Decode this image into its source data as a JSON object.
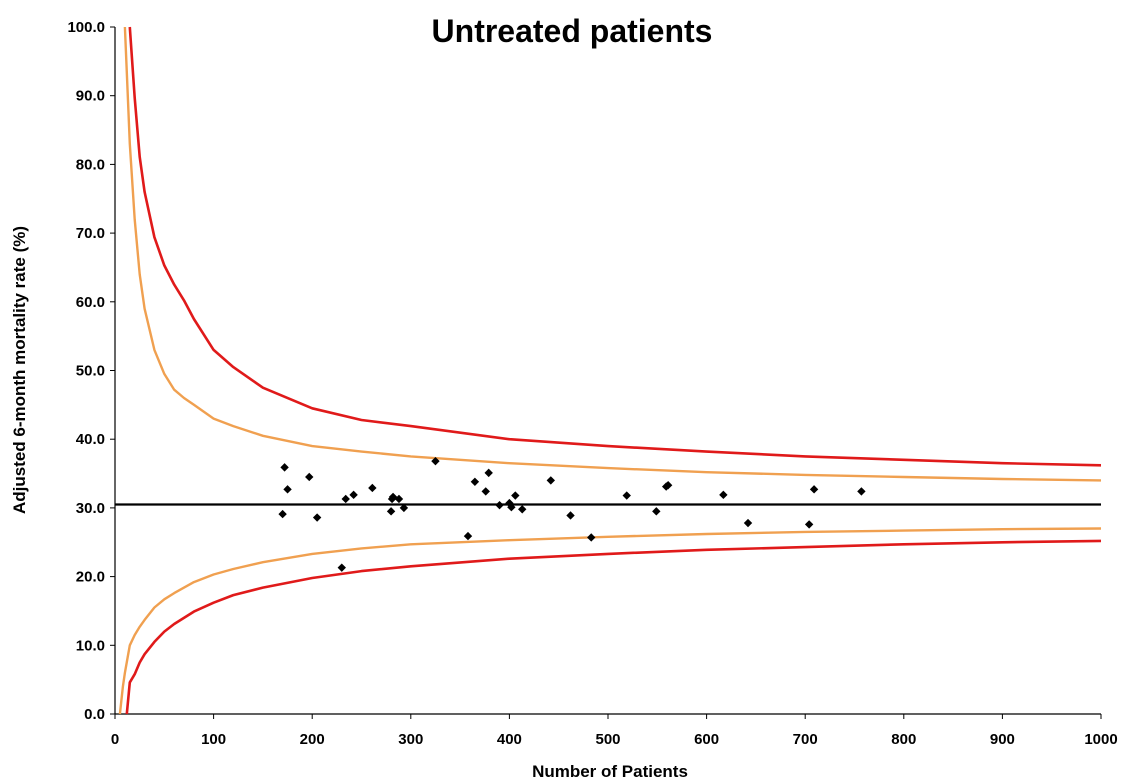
{
  "chart_data": {
    "type": "scatter",
    "title": "Untreated patients",
    "xlabel": "Number of Patients",
    "ylabel": "Adjusted 6-month mortality rate (%)",
    "xlim": [
      0,
      1000
    ],
    "ylim": [
      0,
      100
    ],
    "x_ticks": [
      "0",
      "100",
      "200",
      "300",
      "400",
      "500",
      "600",
      "700",
      "800",
      "900",
      "1000"
    ],
    "y_ticks": [
      "0.0",
      "10.0",
      "20.0",
      "30.0",
      "40.0",
      "50.0",
      "60.0",
      "70.0",
      "80.0",
      "90.0",
      "100.0"
    ],
    "grid": false,
    "legend": "none",
    "mean_line": {
      "y": 30.5,
      "color": "#000000"
    },
    "colors": {
      "inner_limits": "#f0a050",
      "outer_limits": "#e01a1a",
      "points": "#000000"
    },
    "limit_curves": [
      {
        "role": "outer-upper",
        "color": "#e01a1a",
        "x": [
          15,
          20,
          25,
          30,
          40,
          50,
          60,
          70,
          80,
          100,
          120,
          150,
          200,
          250,
          300,
          400,
          500,
          600,
          700,
          800,
          900,
          1000
        ],
        "y": [
          100.0,
          89.7,
          81.1,
          76.0,
          69.4,
          65.3,
          62.5,
          60.2,
          57.5,
          53.0,
          50.5,
          47.5,
          44.5,
          42.8,
          41.9,
          40.0,
          39.0,
          38.2,
          37.5,
          37.0,
          36.5,
          36.2
        ]
      },
      {
        "role": "inner-upper",
        "color": "#f0a050",
        "x": [
          10,
          15,
          20,
          25,
          30,
          40,
          50,
          60,
          70,
          80,
          100,
          120,
          150,
          200,
          250,
          300,
          400,
          500,
          600,
          700,
          800,
          900,
          1000
        ],
        "y": [
          100.0,
          83.0,
          72.0,
          64.0,
          59.0,
          53.0,
          49.5,
          47.2,
          46.0,
          45.0,
          43.0,
          41.9,
          40.5,
          39.0,
          38.2,
          37.5,
          36.5,
          35.8,
          35.2,
          34.8,
          34.5,
          34.2,
          34.0
        ]
      },
      {
        "role": "inner-lower",
        "color": "#f0a050",
        "x": [
          5,
          8,
          10,
          15,
          20,
          25,
          30,
          40,
          50,
          60,
          80,
          100,
          120,
          150,
          200,
          250,
          300,
          400,
          500,
          600,
          700,
          800,
          900,
          1000
        ],
        "y": [
          0.0,
          4.0,
          6.0,
          10.0,
          11.5,
          12.7,
          13.7,
          15.5,
          16.7,
          17.6,
          19.2,
          20.3,
          21.1,
          22.1,
          23.3,
          24.1,
          24.7,
          25.3,
          25.8,
          26.2,
          26.5,
          26.7,
          26.9,
          27.0
        ]
      },
      {
        "role": "outer-lower",
        "color": "#e01a1a",
        "x": [
          12,
          15,
          20,
          25,
          30,
          40,
          50,
          60,
          80,
          100,
          120,
          150,
          200,
          250,
          300,
          400,
          500,
          600,
          700,
          800,
          900,
          1000
        ],
        "y": [
          0.0,
          4.6,
          5.8,
          7.5,
          8.7,
          10.5,
          12.0,
          13.1,
          14.9,
          16.2,
          17.3,
          18.4,
          19.8,
          20.8,
          21.5,
          22.6,
          23.3,
          23.9,
          24.3,
          24.7,
          25.0,
          25.2
        ]
      }
    ],
    "points": {
      "x": [
        170,
        172,
        175,
        197,
        205,
        230,
        234,
        242,
        261,
        280,
        281,
        282,
        288,
        293,
        325,
        358,
        365,
        376,
        379,
        390,
        400,
        402,
        406,
        413,
        442,
        462,
        483,
        519,
        549,
        559,
        561,
        617,
        642,
        704,
        709,
        757
      ],
      "y": [
        29.1,
        35.9,
        32.7,
        34.5,
        28.6,
        21.3,
        31.3,
        31.9,
        32.9,
        29.5,
        31.3,
        31.6,
        31.3,
        30.0,
        36.8,
        25.9,
        33.8,
        32.4,
        35.1,
        30.4,
        30.7,
        30.1,
        31.8,
        29.8,
        34.0,
        28.9,
        25.7,
        31.8,
        29.5,
        33.1,
        33.3,
        31.9,
        27.8,
        27.6,
        32.7,
        32.4
      ]
    }
  }
}
